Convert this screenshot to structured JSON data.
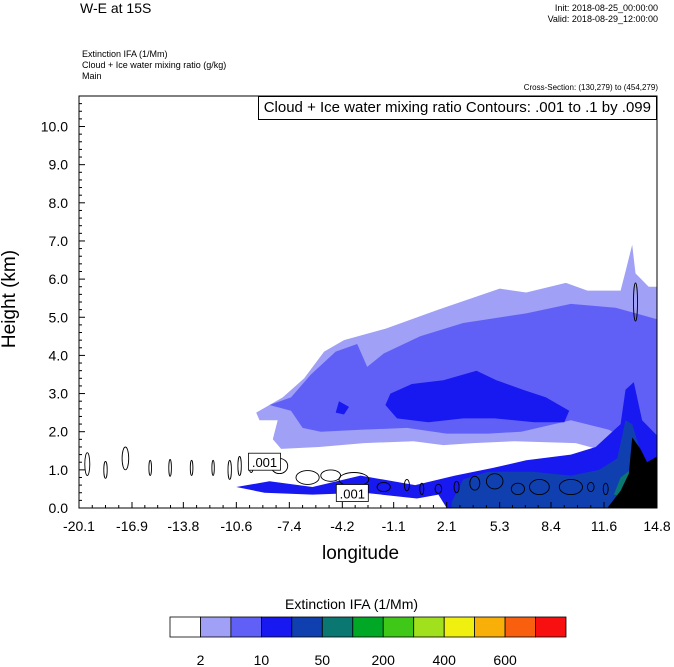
{
  "header": {
    "title": "W-E at 15S",
    "init": "Init: 2018-08-25_00:00:00",
    "valid": "Valid: 2018-08-29_12:00:00",
    "field1": "Extinction IFA   (1/Mm)",
    "field2": "Cloud + Ice water mixing ratio   (g/kg)",
    "field3": "Main",
    "cross_section": "Cross-Section: (130,279) to (454,279)",
    "contour_label": "Cloud + Ice water mixing ratio Contours: .001 to .1 by .099"
  },
  "chart_data": {
    "type": "heatmap",
    "title": "W-E at 15S",
    "xlabel": "longitude",
    "ylabel": "Height (km)",
    "xlim": [
      -20.1,
      14.8
    ],
    "ylim": [
      0,
      10.8
    ],
    "x_ticks": [
      "-20.1",
      "-16.9",
      "-13.8",
      "-10.6",
      "-7.4",
      "-4.2",
      "-1.1",
      "2.1",
      "5.3",
      "8.4",
      "11.6",
      "14.8"
    ],
    "x_tick_values": [
      -20.1,
      -16.9,
      -13.8,
      -10.6,
      -7.4,
      -4.2,
      -1.1,
      2.1,
      5.3,
      8.4,
      11.6,
      14.8
    ],
    "y_ticks": [
      "0.0",
      "1.0",
      "2.0",
      "3.0",
      "4.0",
      "5.0",
      "6.0",
      "7.0",
      "8.0",
      "9.0",
      "10.0"
    ],
    "y_tick_values": [
      0,
      1,
      2,
      3,
      4,
      5,
      6,
      7,
      8,
      9,
      10
    ],
    "contour_annotations": [
      {
        "text": ".001",
        "x": -8.9,
        "y": 1.2
      },
      {
        "text": ".001",
        "x": -3.6,
        "y": 0.38
      }
    ],
    "colorbar": {
      "title": "Extinction IFA  (1/Mm)",
      "colors": [
        "#ffffff",
        "#a0a0f6",
        "#6060f6",
        "#1818f0",
        "#1040b0",
        "#0a7870",
        "#00a826",
        "#40c818",
        "#a0e01c",
        "#f0f010",
        "#f8b008",
        "#f86010",
        "#f81010"
      ],
      "labels": [
        "2",
        "10",
        "50",
        "200",
        "400",
        "600"
      ]
    },
    "fill_regions": [
      {
        "level": 1,
        "color": "#a0a0f6",
        "points": [
          [
            -9.4,
            2.5
          ],
          [
            -7.8,
            2.9
          ],
          [
            -6.5,
            3.4
          ],
          [
            -5.3,
            4.1
          ],
          [
            -4.1,
            4.4
          ],
          [
            -1.6,
            4.7
          ],
          [
            1.6,
            5.2
          ],
          [
            5.3,
            5.75
          ],
          [
            6.9,
            5.65
          ],
          [
            9.3,
            5.9
          ],
          [
            10.6,
            5.7
          ],
          [
            12.6,
            5.7
          ],
          [
            12.9,
            6.2
          ],
          [
            13.3,
            6.9
          ],
          [
            13.5,
            6.15
          ],
          [
            14.3,
            5.8
          ],
          [
            14.8,
            5.8
          ],
          [
            14.8,
            1.35
          ],
          [
            13.5,
            1.65
          ],
          [
            11.6,
            1.5
          ],
          [
            9.9,
            1.7
          ],
          [
            6.2,
            1.75
          ],
          [
            3.7,
            1.7
          ],
          [
            1.9,
            1.65
          ],
          [
            0.1,
            1.75
          ],
          [
            -2.9,
            1.7
          ],
          [
            -5.6,
            1.6
          ],
          [
            -7.9,
            1.55
          ],
          [
            -8.4,
            1.8
          ],
          [
            -8.1,
            2.3
          ],
          [
            -9.2,
            2.3
          ]
        ]
      },
      {
        "level": 2,
        "color": "#6060f6",
        "points": [
          [
            -8.6,
            2.7
          ],
          [
            -7.3,
            2.9
          ],
          [
            -6.1,
            3.5
          ],
          [
            -4.6,
            4.1
          ],
          [
            -3.3,
            4.3
          ],
          [
            -2.7,
            3.7
          ],
          [
            -1.7,
            4.05
          ],
          [
            0.5,
            4.5
          ],
          [
            3.1,
            4.85
          ],
          [
            6.9,
            5.1
          ],
          [
            9.6,
            5.35
          ],
          [
            12.3,
            5.25
          ],
          [
            14.8,
            4.95
          ],
          [
            14.8,
            1.4
          ],
          [
            13.1,
            1.75
          ],
          [
            11.9,
            2.05
          ],
          [
            9.6,
            2.3
          ],
          [
            6.6,
            2.0
          ],
          [
            4.6,
            1.95
          ],
          [
            2.1,
            1.95
          ],
          [
            -0.3,
            2.1
          ],
          [
            -3.1,
            2.05
          ],
          [
            -5.5,
            2.0
          ],
          [
            -6.6,
            2.1
          ],
          [
            -7.3,
            2.55
          ]
        ]
      },
      {
        "level": 3,
        "color": "#1818f0",
        "points": [
          [
            -1.6,
            2.7
          ],
          [
            -1.3,
            3.0
          ],
          [
            0.0,
            3.25
          ],
          [
            1.9,
            3.35
          ],
          [
            3.9,
            3.6
          ],
          [
            5.1,
            3.35
          ],
          [
            6.7,
            3.1
          ],
          [
            8.1,
            2.9
          ],
          [
            9.5,
            2.55
          ],
          [
            9.2,
            2.25
          ],
          [
            7.4,
            2.25
          ],
          [
            5.0,
            2.35
          ],
          [
            3.1,
            2.35
          ],
          [
            1.0,
            2.25
          ],
          [
            -0.9,
            2.35
          ]
        ]
      },
      {
        "level": 3,
        "color": "#1818f0",
        "points": [
          [
            -4.6,
            2.5
          ],
          [
            -4.4,
            2.8
          ],
          [
            -3.8,
            2.65
          ],
          [
            -4.1,
            2.45
          ]
        ]
      },
      {
        "level": 3,
        "color": "#1818f0",
        "points": [
          [
            -10.6,
            0.55
          ],
          [
            -8.6,
            0.7
          ],
          [
            -6.0,
            0.55
          ],
          [
            -3.1,
            0.85
          ],
          [
            0.2,
            0.6
          ],
          [
            2.6,
            0.85
          ],
          [
            4.9,
            1.05
          ],
          [
            6.9,
            1.25
          ],
          [
            9.6,
            1.4
          ],
          [
            11.1,
            1.6
          ],
          [
            12.6,
            2.2
          ],
          [
            12.9,
            3.1
          ],
          [
            13.4,
            3.3
          ],
          [
            13.9,
            2.3
          ],
          [
            14.8,
            1.9
          ],
          [
            14.8,
            0.0
          ],
          [
            2.1,
            0.0
          ],
          [
            1.6,
            0.35
          ],
          [
            0.3,
            0.25
          ],
          [
            -2.9,
            0.4
          ],
          [
            -6.0,
            0.35
          ],
          [
            -8.9,
            0.4
          ]
        ]
      },
      {
        "level": 4,
        "color": "#1040b0",
        "points": [
          [
            2.4,
            0.15
          ],
          [
            3.1,
            0.75
          ],
          [
            4.6,
            0.95
          ],
          [
            7.3,
            0.95
          ],
          [
            9.6,
            0.85
          ],
          [
            11.3,
            1.0
          ],
          [
            12.4,
            1.3
          ],
          [
            12.9,
            2.3
          ],
          [
            13.3,
            2.2
          ],
          [
            14.0,
            1.2
          ],
          [
            14.8,
            0.85
          ],
          [
            14.8,
            0.0
          ],
          [
            2.4,
            0.0
          ]
        ]
      },
      {
        "level": 5,
        "color": "#0a7870",
        "points": [
          [
            12.2,
            0.35
          ],
          [
            12.6,
            0.8
          ],
          [
            13.2,
            1.0
          ],
          [
            13.6,
            0.75
          ],
          [
            13.0,
            0.3
          ]
        ]
      },
      {
        "level": 13,
        "color": "#000000",
        "points": [
          [
            11.8,
            0.0
          ],
          [
            12.6,
            0.45
          ],
          [
            13.1,
            0.9
          ],
          [
            13.3,
            1.85
          ],
          [
            13.8,
            1.55
          ],
          [
            14.2,
            1.2
          ],
          [
            14.8,
            1.35
          ],
          [
            14.8,
            0.0
          ]
        ]
      }
    ]
  }
}
